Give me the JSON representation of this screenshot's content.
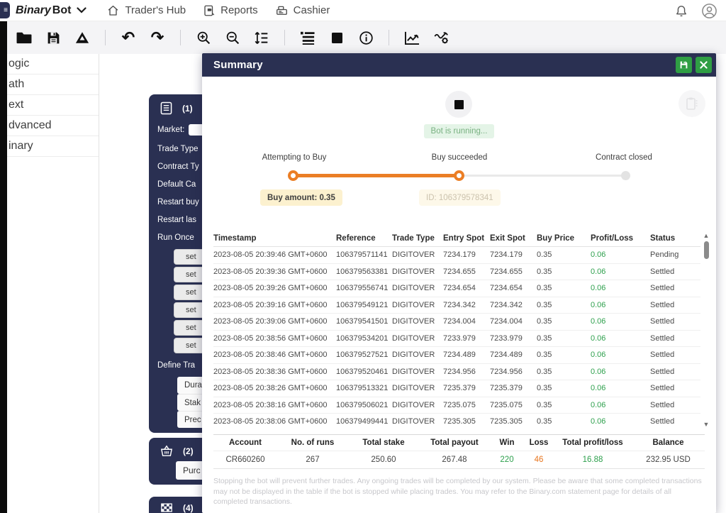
{
  "navbar": {
    "brand": {
      "part1": "Binary",
      "part2": "Bot"
    },
    "items": [
      {
        "label": "Trader's Hub",
        "icon": "home-icon"
      },
      {
        "label": "Reports",
        "icon": "reports-icon"
      },
      {
        "label": "Cashier",
        "icon": "cashier-icon"
      }
    ],
    "right_icons": [
      "notification-bell-icon",
      "account-profile-icon"
    ]
  },
  "toolbar": {
    "icons": [
      "open-folder-icon",
      "save-icon",
      "google-drive-icon",
      "undo-icon",
      "redo-icon",
      "zoom-in-icon",
      "zoom-out-icon",
      "sort-blocks-icon",
      "rearrange-blocks-icon",
      "stop-icon",
      "info-icon",
      "chart-icon",
      "trading-view-icon"
    ],
    "undo_glyph": "↶",
    "redo_glyph": "↷"
  },
  "sidebar": {
    "items": [
      "ogic",
      "ath",
      "ext",
      "dvanced",
      "inary"
    ]
  },
  "workspace": {
    "block1": {
      "number": "(1)",
      "fields": [
        "Market:",
        "Trade Type",
        "Contract Ty",
        "Default Ca",
        "Restart buy",
        "Restart las",
        "Run Once"
      ],
      "set_pills": [
        "set",
        "set",
        "set",
        "set",
        "set",
        "set"
      ],
      "define_label": "Define Tra",
      "define_pills": [
        "Dura",
        "Stak",
        "Prec"
      ]
    },
    "block2": {
      "number": "(2)",
      "pill": "Purc"
    },
    "block3": {
      "number": "(4)"
    }
  },
  "modal": {
    "title": "Summary",
    "header_buttons": [
      "save-strategy-button",
      "close-summary-button"
    ],
    "status_badge": "Bot is running...",
    "steps": [
      {
        "label": "Attempting to Buy",
        "tooltip": "Buy amount: 0.35"
      },
      {
        "label": "Buy succeeded",
        "tooltip": "ID: 106379578341"
      },
      {
        "label": "Contract closed"
      }
    ],
    "table": {
      "columns": [
        "Timestamp",
        "Reference",
        "Trade Type",
        "Entry Spot",
        "Exit Spot",
        "Buy Price",
        "Profit/Loss",
        "Status"
      ],
      "rows": [
        [
          "2023-08-05 20:39:46 GMT+0600",
          "106379571141",
          "DIGITOVER",
          "7234.179",
          "7234.179",
          "0.35",
          "0.06",
          "Pending"
        ],
        [
          "2023-08-05 20:39:36 GMT+0600",
          "106379563381",
          "DIGITOVER",
          "7234.655",
          "7234.655",
          "0.35",
          "0.06",
          "Settled"
        ],
        [
          "2023-08-05 20:39:26 GMT+0600",
          "106379556741",
          "DIGITOVER",
          "7234.654",
          "7234.654",
          "0.35",
          "0.06",
          "Settled"
        ],
        [
          "2023-08-05 20:39:16 GMT+0600",
          "106379549121",
          "DIGITOVER",
          "7234.342",
          "7234.342",
          "0.35",
          "0.06",
          "Settled"
        ],
        [
          "2023-08-05 20:39:06 GMT+0600",
          "106379541501",
          "DIGITOVER",
          "7234.004",
          "7234.004",
          "0.35",
          "0.06",
          "Settled"
        ],
        [
          "2023-08-05 20:38:56 GMT+0600",
          "106379534201",
          "DIGITOVER",
          "7233.979",
          "7233.979",
          "0.35",
          "0.06",
          "Settled"
        ],
        [
          "2023-08-05 20:38:46 GMT+0600",
          "106379527521",
          "DIGITOVER",
          "7234.489",
          "7234.489",
          "0.35",
          "0.06",
          "Settled"
        ],
        [
          "2023-08-05 20:38:36 GMT+0600",
          "106379520461",
          "DIGITOVER",
          "7234.956",
          "7234.956",
          "0.35",
          "0.06",
          "Settled"
        ],
        [
          "2023-08-05 20:38:26 GMT+0600",
          "106379513321",
          "DIGITOVER",
          "7235.379",
          "7235.379",
          "0.35",
          "0.06",
          "Settled"
        ],
        [
          "2023-08-05 20:38:16 GMT+0600",
          "106379506021",
          "DIGITOVER",
          "7235.075",
          "7235.075",
          "0.35",
          "0.06",
          "Settled"
        ],
        [
          "2023-08-05 20:38:06 GMT+0600",
          "106379499441",
          "DIGITOVER",
          "7235.305",
          "7235.305",
          "0.35",
          "0.06",
          "Settled"
        ]
      ]
    },
    "stats": {
      "columns": [
        "Account",
        "No. of runs",
        "Total stake",
        "Total payout",
        "Win",
        "Loss",
        "Total profit/loss",
        "Balance"
      ],
      "values": [
        "CR660260",
        "267",
        "250.60",
        "267.48",
        "220",
        "46",
        "16.88",
        "232.95 USD"
      ]
    },
    "disclaimer": "Stopping the bot will prevent further trades. Any ongoing trades will be completed by our system. Please be aware that some completed transactions may not be displayed in the table if the bot is stopped while placing trades. You may refer to the Binary.com statement page for details of all completed transactions."
  },
  "colors": {
    "navy": "#2a3052",
    "accent_orange": "#eb7e25",
    "green_button": "#2f9e44",
    "profit_green": "#2ea04d",
    "loss_orange": "#e8761f",
    "badge_bg": "#e4f4e7",
    "badge_text": "#79b181",
    "tooltip_bg": "#fcf1cf",
    "toolbar_bg": "#f4f4f6"
  }
}
